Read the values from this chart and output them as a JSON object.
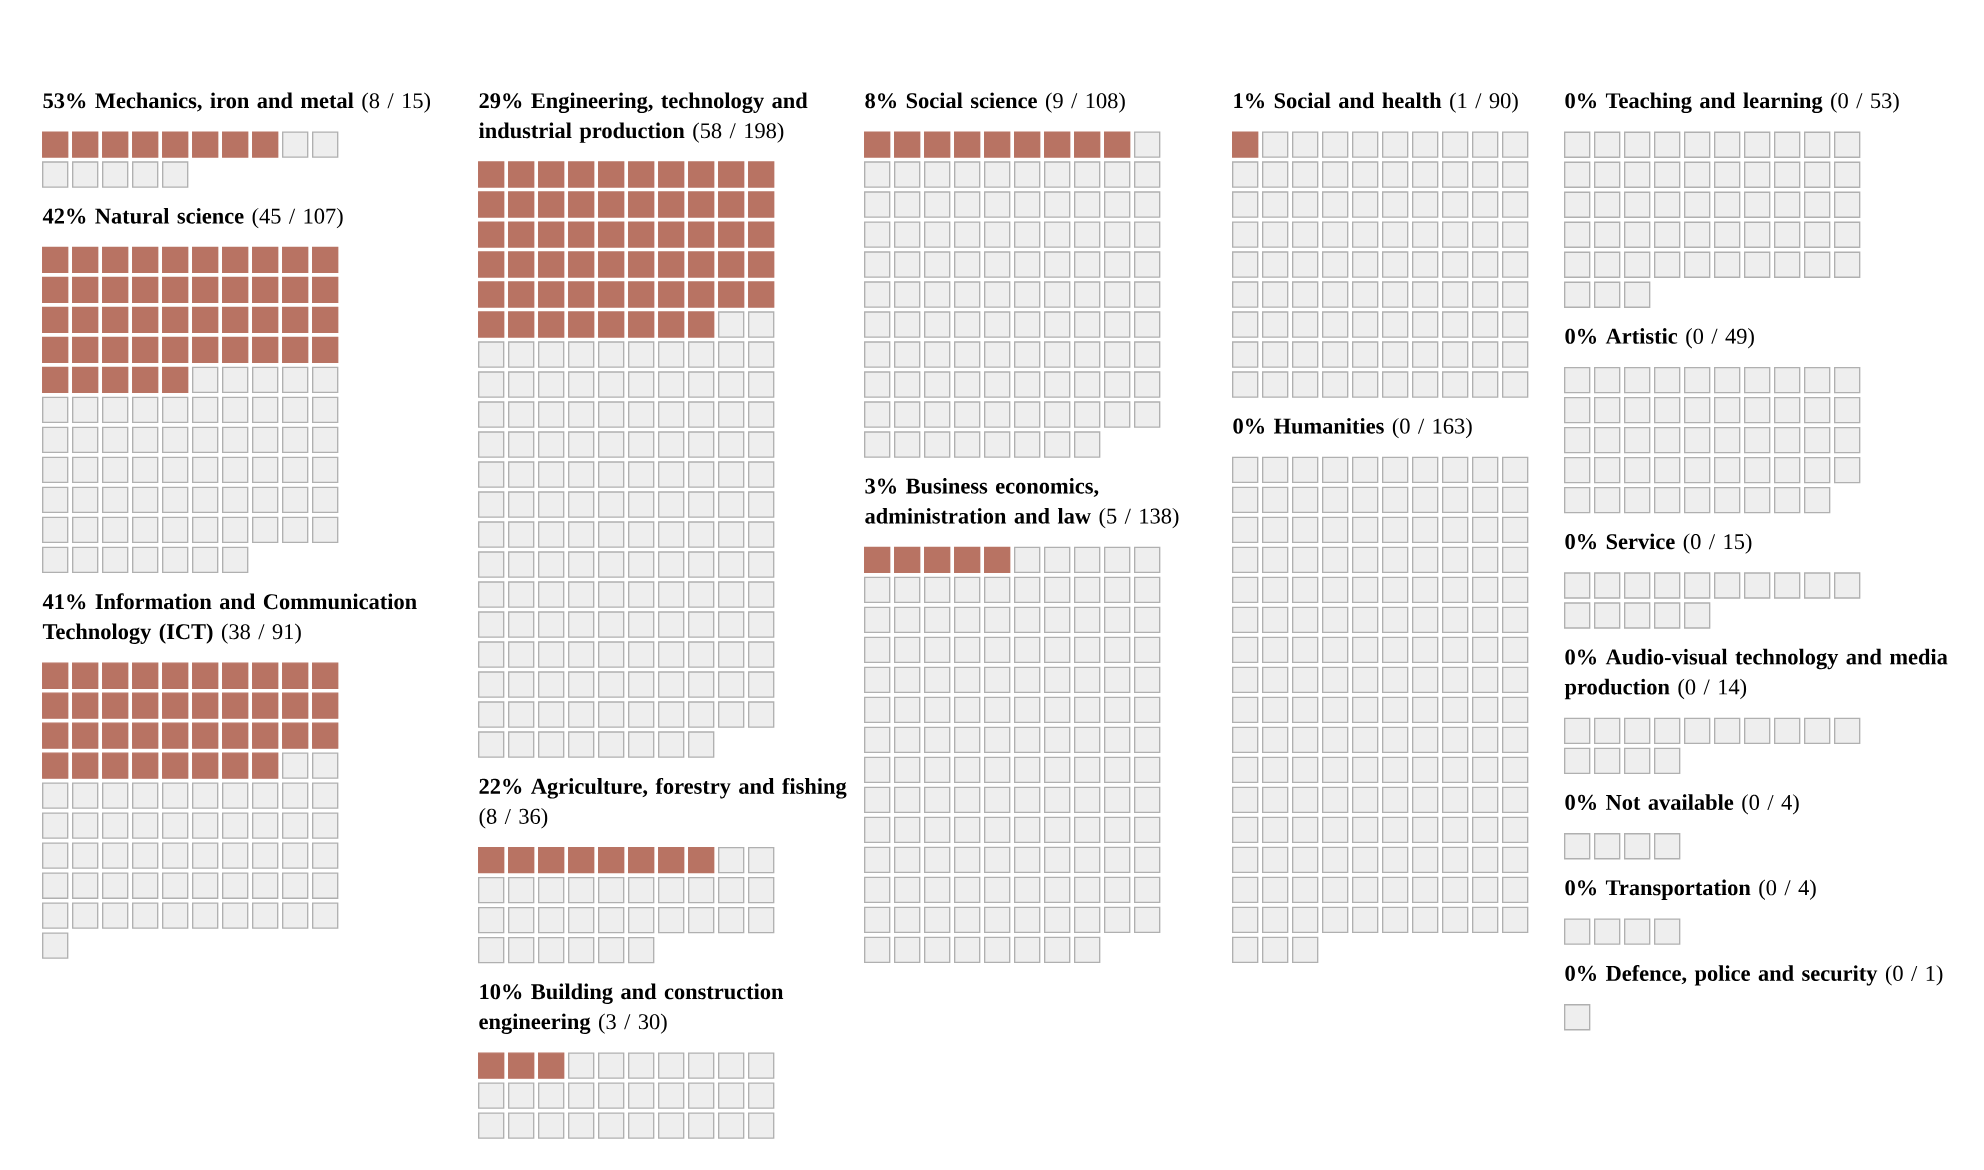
{
  "chart_data": {
    "type": "other",
    "categories": [
      "53% Mechanics, iron and metal",
      "42% Natural science",
      "41% Information and Communication Technology (ICT)",
      "29% Engineering, technology and industrial production",
      "22% Agriculture, forestry and fishing",
      "10% Building and construction engineering",
      "8% Social science",
      "3% Business economics, administration and law",
      "1% Social and health",
      "0% Humanities",
      "0% Teaching and learning",
      "0% Artistic",
      "0% Service",
      "0% Audio-visual technology and media production",
      "0% Not available",
      "0% Transportation",
      "0% Defence, police and security"
    ],
    "series": [
      {
        "color": "#b87363",
        "values": [
          8,
          45,
          38,
          58,
          8,
          3,
          9,
          5,
          1,
          0,
          0,
          0,
          0,
          0,
          0,
          0,
          0
        ],
        "value_labels": [
          "(8 /",
          "(45 /",
          "(38 /",
          "(58 /",
          "(8 /",
          "(3 /",
          "(9 /",
          "(5 /",
          "(1 /",
          "(0 /",
          "(0 /",
          "(0 /",
          "(0 /",
          "(0 /",
          "(0 /",
          "(0 /",
          "(0 /"
        ]
      },
      {
        "color": "#eeeeee",
        "values": [
          15,
          107,
          91,
          198,
          36,
          30,
          108,
          138,
          90,
          163,
          53,
          49,
          15,
          14,
          4,
          4,
          1
        ],
        "value_labels": [
          "15)",
          "107)",
          "91)",
          "198)",
          "36)",
          "30)",
          "108)",
          "138)",
          "90)",
          "163)",
          "53)",
          "49)",
          "15)",
          "14)",
          "4)",
          "4)",
          "1)"
        ]
      }
    ]
  }
}
